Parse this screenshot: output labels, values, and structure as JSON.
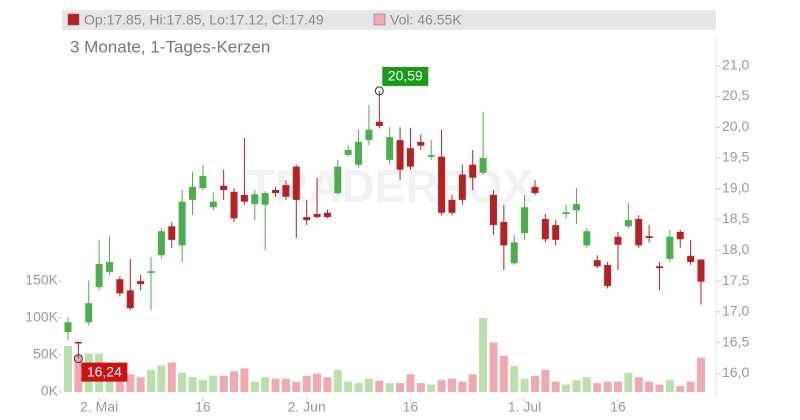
{
  "chart_data": {
    "type": "candlestick",
    "legend": [
      "Op:17.85, Hi:17.85, Lo:17.12, Cl:17.49",
      "Vol: 46.55K"
    ],
    "subtitle": "3 Monate, 1-Tages-Kerzen",
    "watermark": "TRADERFOX",
    "up_color": "#4cae4c",
    "down_color": "#b82025",
    "volume_up_color": "#b9e0ad",
    "volume_down_color": "#efa9b1",
    "categories": [
      null,
      null,
      null,
      "2. Mai",
      null,
      null,
      null,
      null,
      null,
      null,
      null,
      null,
      null,
      "16",
      null,
      null,
      null,
      null,
      null,
      null,
      null,
      null,
      null,
      "2. Jun",
      null,
      null,
      null,
      null,
      null,
      null,
      null,
      null,
      null,
      "16",
      null,
      null,
      null,
      null,
      null,
      null,
      null,
      null,
      null,
      null,
      "1. Jul",
      null,
      null,
      null,
      null,
      null,
      null,
      null,
      null,
      "16",
      null,
      null,
      null,
      null,
      null,
      null,
      null,
      null
    ],
    "open": [
      16.67,
      16.51,
      16.83,
      17.4,
      17.65,
      17.53,
      17.35,
      17.5,
      17.63,
      17.92,
      18.39,
      18.08,
      18.82,
      19.01,
      18.7,
      19.05,
      18.95,
      18.9,
      18.75,
      18.74,
      18.98,
      19.06,
      19.36,
      18.54,
      18.59,
      18.61,
      18.93,
      19.55,
      19.39,
      19.79,
      20.09,
      19.47,
      19.79,
      19.66,
      19.76,
      19.52,
      19.52,
      18.82,
      19.23,
      19.39,
      19.26,
      18.9,
      18.46,
      17.79,
      18.28,
      19.03,
      18.51,
      18.41,
      18.59,
      18.65,
      18.08,
      17.84,
      17.76,
      18.22,
      18.39,
      18.51,
      18.23,
      17.74,
      17.86,
      18.3,
      17.91,
      17.85
    ],
    "high": [
      16.91,
      16.52,
      17.51,
      18.17,
      18.23,
      17.58,
      17.86,
      17.6,
      17.89,
      18.36,
      18.46,
      18.98,
      19.27,
      19.39,
      18.95,
      19.31,
      19.01,
      19.83,
      18.98,
      18.96,
      19.03,
      19.14,
      19.39,
      18.82,
      19.18,
      18.66,
      19.47,
      19.71,
      19.96,
      20.36,
      20.59,
      20.0,
      20.0,
      19.99,
      19.88,
      19.79,
      19.96,
      18.9,
      19.39,
      19.63,
      20.25,
      18.98,
      18.74,
      18.25,
      18.9,
      19.14,
      18.59,
      18.49,
      18.74,
      19.01,
      18.36,
      17.92,
      17.81,
      18.3,
      18.77,
      18.57,
      18.41,
      17.81,
      18.33,
      18.33,
      18.17,
      17.85
    ],
    "low": [
      16.54,
      16.24,
      16.78,
      17.35,
      17.6,
      17.25,
      17.03,
      17.35,
      17.03,
      17.87,
      18.04,
      17.81,
      18.57,
      18.98,
      18.65,
      18.82,
      18.46,
      18.74,
      18.49,
      18.0,
      18.87,
      18.82,
      18.2,
      18.41,
      18.52,
      18.52,
      18.9,
      19.52,
      19.34,
      19.71,
      19.98,
      19.4,
      19.14,
      19.31,
      19.63,
      19.47,
      18.57,
      18.57,
      18.74,
      18.98,
      19.23,
      18.25,
      17.68,
      17.76,
      18.17,
      18.9,
      18.13,
      18.08,
      18.52,
      18.43,
      18.04,
      17.71,
      17.38,
      17.68,
      18.36,
      18.04,
      18.13,
      17.35,
      17.81,
      18.04,
      17.76,
      17.12
    ],
    "close": [
      16.83,
      16.49,
      17.14,
      17.78,
      17.81,
      17.3,
      17.06,
      17.45,
      17.66,
      18.31,
      18.17,
      18.79,
      19.03,
      19.21,
      18.79,
      18.98,
      18.52,
      18.79,
      18.91,
      18.93,
      18.93,
      18.87,
      18.82,
      18.49,
      18.54,
      18.54,
      19.36,
      19.63,
      19.76,
      19.96,
      20.02,
      19.84,
      19.31,
      19.36,
      19.7,
      19.55,
      18.61,
      18.61,
      18.82,
      19.18,
      19.5,
      18.41,
      18.08,
      18.13,
      18.7,
      18.93,
      18.18,
      18.17,
      18.62,
      18.75,
      18.31,
      17.74,
      17.42,
      18.09,
      18.49,
      18.08,
      18.2,
      17.71,
      18.22,
      18.18,
      17.81,
      17.49
    ],
    "volume": [
      62000,
      50000,
      52000,
      52000,
      25000,
      22000,
      24000,
      20000,
      30000,
      36000,
      40000,
      26000,
      20000,
      16000,
      22000,
      22000,
      28000,
      32000,
      14000,
      20000,
      18000,
      18000,
      14000,
      22000,
      25000,
      20000,
      30000,
      14000,
      12000,
      18000,
      15000,
      12000,
      12000,
      24000,
      12000,
      10000,
      16000,
      18000,
      14000,
      24000,
      100000,
      67000,
      49000,
      35000,
      18000,
      22000,
      30000,
      14000,
      10000,
      16000,
      20000,
      12000,
      14000,
      14000,
      26000,
      20000,
      14000,
      10000,
      16000,
      8000,
      14000,
      46550
    ],
    "ylim": [
      15.6,
      21.45
    ],
    "yticks": [
      {
        "value": 16.0,
        "label": "16,0"
      },
      {
        "value": 16.5,
        "label": "16,5"
      },
      {
        "value": 17.0,
        "label": "17,0"
      },
      {
        "value": 17.5,
        "label": "17,5"
      },
      {
        "value": 18.0,
        "label": "18,0"
      },
      {
        "value": 18.5,
        "label": "18,5"
      },
      {
        "value": 19.0,
        "label": "19,0"
      },
      {
        "value": 19.5,
        "label": "19,5"
      },
      {
        "value": 20.0,
        "label": "20,0"
      },
      {
        "value": 20.5,
        "label": "20,5"
      },
      {
        "value": 21.0,
        "label": "21,0"
      }
    ],
    "y2lim": [
      0,
      150000
    ],
    "y2ticks": [
      {
        "value": 0,
        "label": "0K"
      },
      {
        "value": 50000,
        "label": "50K"
      },
      {
        "value": 100000,
        "label": "100K"
      },
      {
        "value": 150000,
        "label": "150K"
      }
    ],
    "annotations": [
      {
        "label": "20,59",
        "value": 20.59,
        "color": "#1a9a1a"
      },
      {
        "label": "16,24",
        "value": 16.24,
        "color": "#cc1111"
      }
    ]
  }
}
